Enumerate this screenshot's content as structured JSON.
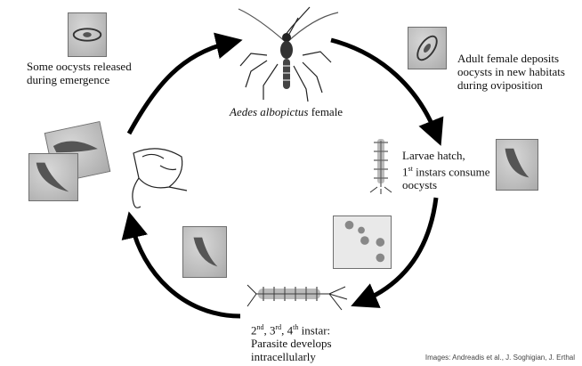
{
  "diagram": {
    "organism_label_species": "Aedes albopictus",
    "organism_label_rest": " female",
    "stages": {
      "release": {
        "line1": "Some oocysts released",
        "line2": "during emergence"
      },
      "deposit": {
        "line1": "Adult female deposits",
        "line2": "oocysts in new habitats",
        "line3": "during oviposition"
      },
      "hatch": {
        "line1": "Larvae hatch,",
        "line2_sup": "st",
        "line2_num": "1",
        "line2_rest": " instars consume",
        "line3": "oocysts"
      },
      "develop": {
        "n1": "2",
        "s1": "nd",
        "sep1": ", ",
        "n2": "3",
        "s2": "rd",
        "sep2": ", ",
        "n3": "4",
        "s3": "th",
        "tail": " instar:",
        "line2": "Parasite develops",
        "line3": "intracellularly"
      }
    },
    "credit": "Images: Andreadis et al., J. Soghigian, J. Erthal",
    "colors": {
      "arrow": "#000000",
      "text": "#111111",
      "photo_bg": "#bdbdbd"
    },
    "icons": [
      "mosquito-adult-icon",
      "larva-icon",
      "pupa-icon",
      "oocyst-photo",
      "parasite-photo"
    ]
  }
}
